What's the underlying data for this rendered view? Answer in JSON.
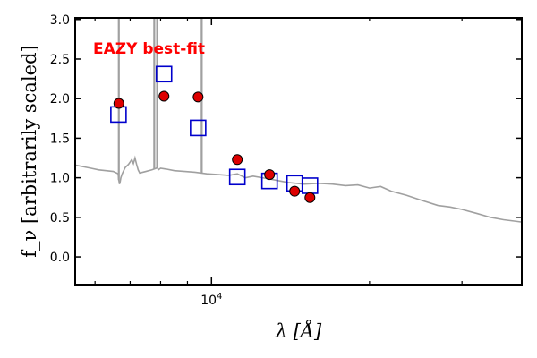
{
  "chart_data": {
    "type": "scatter",
    "title": "",
    "xlabel": "λ [Å]",
    "ylabel": "f_ν [arbitrarily scaled]",
    "x_scale": "log",
    "xlim": [
      5500,
      39000
    ],
    "ylim": [
      -0.35,
      3.02
    ],
    "yticks": [
      0.0,
      0.5,
      1.0,
      1.5,
      2.0,
      2.5,
      3.0
    ],
    "ytick_labels": [
      "0.0",
      "0.5",
      "1.0",
      "1.5",
      "2.0",
      "2.5",
      "3.0"
    ],
    "xticks_major": [
      10000
    ],
    "xtick_labels": [
      "10^4"
    ],
    "xticks_minor": [
      6000,
      7000,
      8000,
      9000,
      20000,
      30000
    ],
    "grid": false,
    "annotation": {
      "text": "EAZY best-fit",
      "color": "#ff0000"
    },
    "colors": {
      "template": "#a0a0a0",
      "observed_fill": "#dd0000",
      "model_edge": "#0000cc"
    },
    "series": [
      {
        "kind": "line",
        "points": [
          [
            5500,
            1.16
          ],
          [
            5700,
            1.14
          ],
          [
            5900,
            1.12
          ],
          [
            6100,
            1.1
          ],
          [
            6300,
            1.09
          ],
          [
            6500,
            1.08
          ],
          [
            6640,
            1.05
          ],
          [
            6660,
            0.97
          ],
          [
            6680,
            0.92
          ],
          [
            6700,
            0.95
          ],
          [
            6720,
            1.0
          ],
          [
            6760,
            1.05
          ],
          [
            6850,
            1.13
          ],
          [
            6950,
            1.17
          ],
          [
            7000,
            1.2
          ],
          [
            7050,
            1.23
          ],
          [
            7100,
            1.18
          ],
          [
            7150,
            1.25
          ],
          [
            7200,
            1.17
          ],
          [
            7250,
            1.1
          ],
          [
            7300,
            1.06
          ],
          [
            7500,
            1.08
          ],
          [
            7700,
            1.1
          ],
          [
            7850,
            1.12
          ],
          [
            7880,
            1.14
          ],
          [
            7920,
            1.1
          ],
          [
            8000,
            1.12
          ],
          [
            8200,
            1.11
          ],
          [
            8500,
            1.09
          ],
          [
            8900,
            1.08
          ],
          [
            9300,
            1.07
          ],
          [
            9800,
            1.05
          ],
          [
            10300,
            1.04
          ],
          [
            10800,
            1.03
          ],
          [
            11200,
            1.05
          ],
          [
            11600,
            1.0
          ],
          [
            12000,
            1.02
          ],
          [
            12500,
            1.0
          ],
          [
            13000,
            0.98
          ],
          [
            13500,
            0.96
          ],
          [
            14000,
            0.94
          ],
          [
            15000,
            0.92
          ],
          [
            16000,
            0.93
          ],
          [
            17000,
            0.92
          ],
          [
            18000,
            0.9
          ],
          [
            19000,
            0.91
          ],
          [
            20000,
            0.87
          ],
          [
            21000,
            0.89
          ],
          [
            22000,
            0.83
          ],
          [
            23500,
            0.78
          ],
          [
            25000,
            0.72
          ],
          [
            27000,
            0.65
          ],
          [
            28500,
            0.63
          ],
          [
            30000,
            0.6
          ],
          [
            32000,
            0.55
          ],
          [
            34000,
            0.5
          ],
          [
            36000,
            0.47
          ],
          [
            38000,
            0.45
          ],
          [
            39000,
            0.44
          ]
        ],
        "emission_lines": [
          {
            "x": 6660,
            "top": 3.02
          },
          {
            "x": 7780,
            "top": 3.02
          },
          {
            "x": 7880,
            "top": 3.02
          },
          {
            "x": 9580,
            "top": 3.02
          }
        ]
      },
      {
        "kind": "squares",
        "points": [
          [
            6650,
            1.8
          ],
          [
            8120,
            2.31
          ],
          [
            9430,
            1.63
          ],
          [
            11200,
            1.01
          ],
          [
            12900,
            0.96
          ],
          [
            14400,
            0.93
          ],
          [
            15400,
            0.9
          ]
        ]
      },
      {
        "kind": "circles",
        "points": [
          [
            6660,
            1.94
          ],
          [
            8120,
            2.03
          ],
          [
            9430,
            2.02
          ],
          [
            11200,
            1.23
          ],
          [
            12900,
            1.04
          ],
          [
            14400,
            0.83
          ],
          [
            15400,
            0.75
          ]
        ]
      }
    ]
  }
}
